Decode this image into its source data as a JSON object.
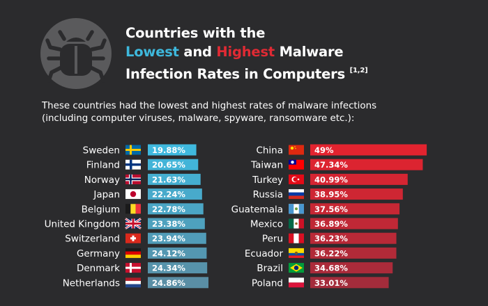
{
  "header": {
    "title_line1": "Countries with the",
    "title_lowest": "Lowest",
    "title_and": "and",
    "title_highest": "Highest",
    "title_malware": "Malware",
    "title_line3": "Infection Rates in Computers",
    "title_ref": "[1,2]",
    "subtitle_line1": "These countries had the lowest and highest rates of malware infections",
    "subtitle_line2": "(including computer viruses, malware, spyware, ransomware etc.):",
    "logo_icon": "bug-icon"
  },
  "colors": {
    "background": "#2b2b2d",
    "lowest_accent": "#3eb8dc",
    "highest_accent": "#e02a34"
  },
  "chart_data": [
    {
      "type": "bar",
      "orientation": "horizontal",
      "group": "lowest",
      "categories": [
        "Sweden",
        "Finland",
        "Norway",
        "Japan",
        "Belgium",
        "United Kingdom",
        "Switzerland",
        "Germany",
        "Denmark",
        "Netherlands"
      ],
      "values": [
        19.88,
        20.65,
        21.63,
        22.24,
        22.78,
        23.38,
        23.94,
        24.12,
        24.34,
        24.86
      ],
      "value_labels": [
        "19.88%",
        "20.65%",
        "21.63%",
        "22.24%",
        "22.78%",
        "23.38%",
        "23.94%",
        "24.12%",
        "24.34%",
        "24.86%"
      ],
      "colors": [
        "#3fb9de",
        "#42b4d8",
        "#45afd1",
        "#48aacb",
        "#4ba6c5",
        "#4ea1be",
        "#519cb8",
        "#5497b1",
        "#5793ab",
        "#5a8ea5"
      ],
      "flags": [
        "sweden-flag-icon",
        "finland-flag-icon",
        "norway-flag-icon",
        "japan-flag-icon",
        "belgium-flag-icon",
        "united-kingdom-flag-icon",
        "switzerland-flag-icon",
        "germany-flag-icon",
        "denmark-flag-icon",
        "netherlands-flag-icon"
      ]
    },
    {
      "type": "bar",
      "orientation": "horizontal",
      "group": "highest",
      "categories": [
        "China",
        "Taiwan",
        "Turkey",
        "Russia",
        "Guatemala",
        "Mexico",
        "Peru",
        "Ecuador",
        "Brazil",
        "Poland"
      ],
      "values": [
        49,
        47.34,
        40.99,
        38.95,
        37.56,
        36.89,
        36.23,
        36.22,
        34.68,
        33.01
      ],
      "value_labels": [
        "49%",
        "47.34%",
        "40.99%",
        "38.95%",
        "37.56%",
        "36.89%",
        "36.23%",
        "36.22%",
        "34.68%",
        "33.01%"
      ],
      "colors": [
        "#e3232f",
        "#dc2430",
        "#d52532",
        "#ce2633",
        "#c72734",
        "#c02836",
        "#b92937",
        "#b22a38",
        "#ab2b3a",
        "#a42c3b"
      ],
      "flags": [
        "china-flag-icon",
        "taiwan-flag-icon",
        "turkey-flag-icon",
        "russia-flag-icon",
        "guatemala-flag-icon",
        "mexico-flag-icon",
        "peru-flag-icon",
        "ecuador-flag-icon",
        "brazil-flag-icon",
        "poland-flag-icon"
      ]
    }
  ]
}
